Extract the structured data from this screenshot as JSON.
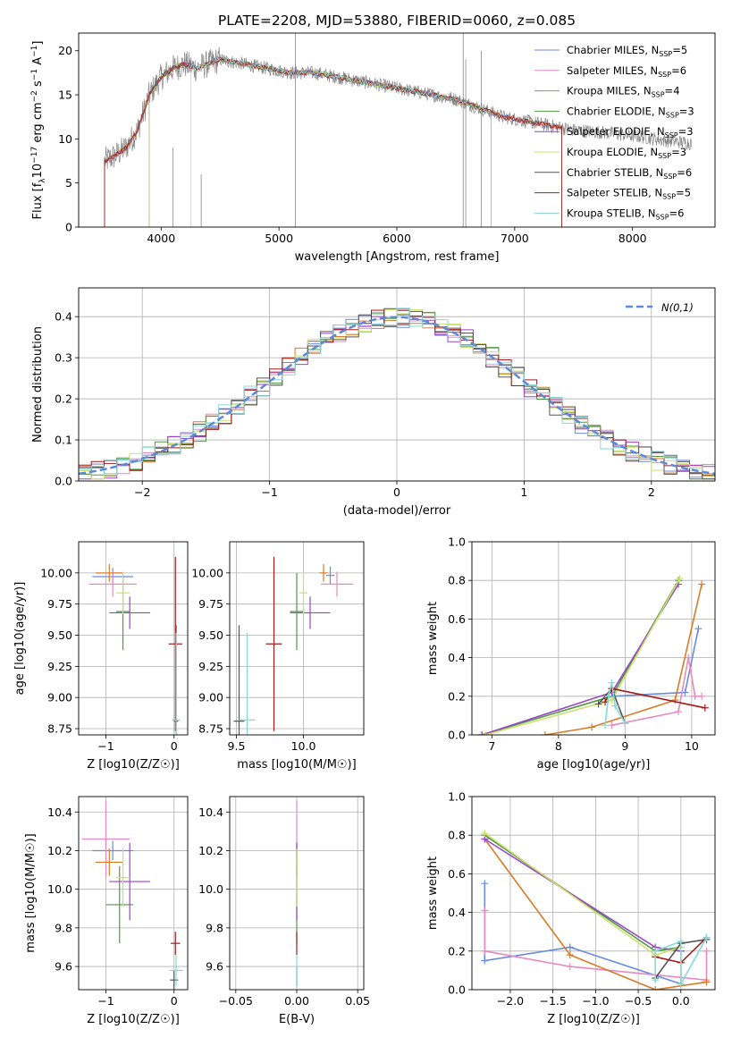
{
  "figure": {
    "title": "PLATE=2208, MJD=53880, FIBERID=0060, z=0.085"
  },
  "models": [
    {
      "name": "Chabrier MILES",
      "nssp": "5",
      "color": "#6b8be0"
    },
    {
      "name": "Salpeter MILES",
      "nssp": "6",
      "color": "#e889c0"
    },
    {
      "name": "Kroupa MILES",
      "nssp": "4",
      "color": "#d97a25"
    },
    {
      "name": "Chabrier ELODIE",
      "nssp": "3",
      "color": "#4e9a45"
    },
    {
      "name": "Salpeter ELODIE",
      "nssp": "3",
      "color": "#9b45c8"
    },
    {
      "name": "Kroupa ELODIE",
      "nssp": "3",
      "color": "#c9e26a"
    },
    {
      "name": "Chabrier STELIB",
      "nssp": "6",
      "color": "#555555"
    },
    {
      "name": "Salpeter STELIB",
      "nssp": "5",
      "color": "#a51c1c"
    },
    {
      "name": "Kroupa STELIB",
      "nssp": "6",
      "color": "#86d8d8"
    }
  ],
  "chart_data": [
    {
      "id": "spectrum",
      "type": "line",
      "title": "PLATE=2208, MJD=53880, FIBERID=0060, z=0.085",
      "xlabel": "wavelength [Angstrom, rest frame]",
      "ylabel": "Flux [f_λ 10^-17 erg cm^-2 s^-1 A^-1]",
      "xlim": [
        3300,
        8700
      ],
      "ylim": [
        0,
        22
      ],
      "xticks": [
        "4000",
        "5000",
        "6000",
        "7000",
        "8000"
      ],
      "yticks": [
        "0",
        "5",
        "10",
        "15",
        "20"
      ],
      "data_color": "#888888",
      "data_anchors": [
        [
          3520,
          7.5
        ],
        [
          3600,
          8.0
        ],
        [
          3700,
          9.0
        ],
        [
          3800,
          11.0
        ],
        [
          3900,
          15.0
        ],
        [
          4000,
          17.0
        ],
        [
          4100,
          18.0
        ],
        [
          4200,
          18.5
        ],
        [
          4300,
          18.0
        ],
        [
          4400,
          18.5
        ],
        [
          4500,
          19.0
        ],
        [
          4700,
          18.5
        ],
        [
          4900,
          18.0
        ],
        [
          5100,
          17.5
        ],
        [
          5300,
          17.5
        ],
        [
          5500,
          17.0
        ],
        [
          5700,
          16.5
        ],
        [
          5900,
          16.0
        ],
        [
          6100,
          15.5
        ],
        [
          6300,
          15.0
        ],
        [
          6500,
          14.5
        ],
        [
          6700,
          13.5
        ],
        [
          6900,
          12.5
        ],
        [
          7100,
          12.0
        ],
        [
          7300,
          11.5
        ],
        [
          7500,
          11.0
        ],
        [
          7700,
          10.8
        ],
        [
          7900,
          10.5
        ],
        [
          8100,
          10.2
        ],
        [
          8300,
          9.8
        ],
        [
          8500,
          9.5
        ]
      ],
      "model_ranges": [
        [
          3520,
          7400
        ],
        [
          3520,
          7400
        ],
        [
          3520,
          7400
        ],
        [
          3900,
          6800
        ],
        [
          3900,
          6800
        ],
        [
          3900,
          6800
        ],
        [
          3520,
          7400
        ],
        [
          3520,
          7400
        ],
        [
          4250,
          6800
        ]
      ],
      "spikes": [
        [
          4101,
          9
        ],
        [
          4340,
          6
        ],
        [
          5140,
          22
        ],
        [
          6563,
          22
        ],
        [
          6585,
          19
        ],
        [
          6716,
          20
        ]
      ],
      "legend_position": "upper right"
    },
    {
      "id": "residuals",
      "type": "line",
      "xlabel": "(data-model)/error",
      "ylabel": "Normed distribution",
      "xlim": [
        -2.5,
        2.5
      ],
      "ylim": [
        0,
        0.47
      ],
      "xticks": [
        "−2",
        "−1",
        "0",
        "1",
        "2"
      ],
      "yticks": [
        "0.0",
        "0.1",
        "0.2",
        "0.3",
        "0.4"
      ],
      "grid": true,
      "bin_width": 0.1,
      "reference": {
        "label": "N(0,1)",
        "color": "#5b8bd8",
        "mean": 0,
        "sigma": 1
      },
      "legend_position": "upper right"
    },
    {
      "id": "age-vs-Z",
      "type": "scatter",
      "xlabel": "Z [log10(Z/Z☉)]",
      "ylabel": "age [log10(age/yr)]",
      "xlim": [
        -1.4,
        0.2
      ],
      "ylim": [
        8.7,
        10.25
      ],
      "xticks": [
        "−1",
        "0"
      ],
      "yticks": [
        "8.75",
        "9.00",
        "9.25",
        "9.50",
        "9.75",
        "10.00"
      ],
      "grid": true,
      "points": [
        {
          "x": -0.9,
          "y": 9.97,
          "xerr": 0.3,
          "yerr": 0.07
        },
        {
          "x": -0.9,
          "y": 9.91,
          "xerr": 0.35,
          "yerr": 0.1
        },
        {
          "x": -0.95,
          "y": 10.0,
          "xerr": 0.2,
          "yerr": 0.07
        },
        {
          "x": -0.75,
          "y": 9.69,
          "xerr": 0.1,
          "yerr": 0.31
        },
        {
          "x": -0.65,
          "y": 9.68,
          "xerr": 0.3,
          "yerr": 0.13
        },
        {
          "x": -0.75,
          "y": 9.84,
          "xerr": 0.1,
          "yerr": 0.17
        },
        {
          "x": 0.03,
          "y": 8.81,
          "xerr": 0.03,
          "yerr": 0.77
        },
        {
          "x": 0.02,
          "y": 9.43,
          "xerr": 0.1,
          "yerr": 0.7
        },
        {
          "x": 0.03,
          "y": 8.82,
          "xerr": 0.06,
          "yerr": 0.7
        }
      ]
    },
    {
      "id": "age-vs-mass",
      "type": "scatter",
      "xlabel": "mass [log10(M/M☉)]",
      "ylabel": "",
      "xlim": [
        9.45,
        10.45
      ],
      "ylim": [
        8.7,
        10.25
      ],
      "xticks": [
        "9.5",
        "10.0"
      ],
      "yticks": [
        "8.75",
        "9.00",
        "9.25",
        "9.50",
        "9.75",
        "10.00"
      ],
      "grid": true,
      "points": [
        {
          "x": 10.2,
          "y": 9.98,
          "xerr": 0.03,
          "yerr": 0.07
        },
        {
          "x": 10.25,
          "y": 9.91,
          "xerr": 0.12,
          "yerr": 0.1
        },
        {
          "x": 10.15,
          "y": 10.0,
          "xerr": 0.03,
          "yerr": 0.07
        },
        {
          "x": 9.95,
          "y": 9.69,
          "xerr": 0.05,
          "yerr": 0.31
        },
        {
          "x": 10.05,
          "y": 9.68,
          "xerr": 0.15,
          "yerr": 0.13
        },
        {
          "x": 10.0,
          "y": 9.84,
          "xerr": 0.03,
          "yerr": 0.17
        },
        {
          "x": 9.52,
          "y": 8.81,
          "xerr": 0.04,
          "yerr": 0.77
        },
        {
          "x": 9.78,
          "y": 9.43,
          "xerr": 0.06,
          "yerr": 0.7
        },
        {
          "x": 9.58,
          "y": 8.82,
          "xerr": 0.06,
          "yerr": 0.7
        }
      ]
    },
    {
      "id": "mass-weight-vs-age",
      "type": "line",
      "xlabel": "age [log10(age/yr)]",
      "ylabel": "mass weight",
      "xlim": [
        6.7,
        10.35
      ],
      "ylim": [
        0,
        1
      ],
      "xticks": [
        "7",
        "8",
        "9",
        "10"
      ],
      "yticks": [
        "0.0",
        "0.2",
        "0.4",
        "0.6",
        "0.8",
        "1.0"
      ],
      "grid": true,
      "series": [
        {
          "x": [
            8.8,
            9.9,
            10.1
          ],
          "y": [
            0.2,
            0.22,
            0.55
          ]
        },
        {
          "x": [
            8.8,
            9.8,
            9.95,
            10.05,
            10.15
          ],
          "y": [
            0.05,
            0.12,
            0.4,
            0.2,
            0.2
          ]
        },
        {
          "x": [
            7.8,
            8.5,
            9.75,
            10.15
          ],
          "y": [
            0.0,
            0.04,
            0.18,
            0.78
          ]
        },
        {
          "x": [
            6.85,
            8.8,
            9.8
          ],
          "y": [
            0.0,
            0.2,
            0.8
          ]
        },
        {
          "x": [
            6.85,
            8.8,
            9.8
          ],
          "y": [
            0.0,
            0.22,
            0.78
          ]
        },
        {
          "x": [
            6.9,
            8.8,
            9.82
          ],
          "y": [
            0.0,
            0.18,
            0.81
          ]
        },
        {
          "x": [
            8.6,
            8.8,
            9.0
          ],
          "y": [
            0.16,
            0.24,
            0.06
          ]
        },
        {
          "x": [
            8.7,
            8.8,
            10.2
          ],
          "y": [
            0.17,
            0.24,
            0.14
          ]
        },
        {
          "x": [
            8.7,
            8.75,
            8.8,
            8.85,
            9.0
          ],
          "y": [
            0.05,
            0.2,
            0.27,
            0.15,
            0.06
          ]
        }
      ]
    },
    {
      "id": "mass-vs-Z",
      "type": "scatter",
      "xlabel": "Z [log10(Z/Z☉)]",
      "ylabel": "mass [log10(M/M☉)]",
      "xlim": [
        -1.4,
        0.2
      ],
      "ylim": [
        9.48,
        10.48
      ],
      "xticks": [
        "−1",
        "0"
      ],
      "yticks": [
        "9.6",
        "9.8",
        "10.0",
        "10.2",
        "10.4"
      ],
      "grid": true,
      "points": [
        {
          "x": -0.9,
          "y": 10.2,
          "xerr": 0.3,
          "yerr": 0.05
        },
        {
          "x": -1.0,
          "y": 10.26,
          "xerr": 0.35,
          "yerr": 0.2
        },
        {
          "x": -0.95,
          "y": 10.14,
          "xerr": 0.2,
          "yerr": 0.07
        },
        {
          "x": -0.8,
          "y": 9.92,
          "xerr": 0.2,
          "yerr": 0.2
        },
        {
          "x": -0.65,
          "y": 10.04,
          "xerr": 0.3,
          "yerr": 0.2
        },
        {
          "x": -0.75,
          "y": 10.06,
          "xerr": 0.1,
          "yerr": 0.15
        },
        {
          "x": 0.0,
          "y": 9.53,
          "xerr": 0.06,
          "yerr": 0.05
        },
        {
          "x": 0.02,
          "y": 9.72,
          "xerr": 0.07,
          "yerr": 0.06
        },
        {
          "x": 0.03,
          "y": 9.58,
          "xerr": 0.1,
          "yerr": 0.08
        }
      ]
    },
    {
      "id": "mass-vs-ebv",
      "type": "scatter",
      "xlabel": "E(B-V)",
      "ylabel": "",
      "xlim": [
        -0.055,
        0.055
      ],
      "ylim": [
        9.48,
        10.48
      ],
      "xticks": [
        "−0.05",
        "0.00",
        "0.05"
      ],
      "yticks": [
        "9.6",
        "9.8",
        "10.0",
        "10.2",
        "10.4"
      ],
      "grid": true,
      "points": [
        {
          "x": 0,
          "y": 10.2,
          "xerr": 0,
          "yerr": 0.05
        },
        {
          "x": 0,
          "y": 10.26,
          "xerr": 0,
          "yerr": 0.2
        },
        {
          "x": 0,
          "y": 10.14,
          "xerr": 0,
          "yerr": 0.07
        },
        {
          "x": 0,
          "y": 9.92,
          "xerr": 0,
          "yerr": 0.2
        },
        {
          "x": 0,
          "y": 10.04,
          "xerr": 0,
          "yerr": 0.2
        },
        {
          "x": 0,
          "y": 10.06,
          "xerr": 0,
          "yerr": 0.15
        },
        {
          "x": 0,
          "y": 9.55,
          "xerr": 0,
          "yerr": 0.05
        },
        {
          "x": 0,
          "y": 9.72,
          "xerr": 0,
          "yerr": 0.06
        },
        {
          "x": 0,
          "y": 9.58,
          "xerr": 0,
          "yerr": 0.08
        }
      ]
    },
    {
      "id": "mass-weight-vs-Z",
      "type": "line",
      "xlabel": "Z [log10(Z/Z☉)]",
      "ylabel": "mass weight",
      "xlim": [
        -2.45,
        0.4
      ],
      "ylim": [
        0,
        1
      ],
      "xticks": [
        "−2.0",
        "−1.5",
        "−1.0",
        "−0.5",
        "0.0"
      ],
      "yticks": [
        "0.0",
        "0.2",
        "0.4",
        "0.6",
        "0.8",
        "1.0"
      ],
      "grid": true,
      "series": [
        {
          "x": [
            -2.3,
            -2.3,
            -1.3,
            0.0,
            0.0
          ],
          "y": [
            0.55,
            0.15,
            0.22,
            0.03,
            0.2
          ]
        },
        {
          "x": [
            -2.3,
            -2.3,
            -1.3,
            0.3,
            0.3
          ],
          "y": [
            0.41,
            0.2,
            0.12,
            0.05,
            0.2
          ]
        },
        {
          "x": [
            -2.3,
            -1.3,
            -0.3,
            0.3
          ],
          "y": [
            0.78,
            0.18,
            0.0,
            0.04
          ]
        },
        {
          "x": [
            -2.3,
            -0.3,
            0.0
          ],
          "y": [
            0.8,
            0.2,
            0.22
          ]
        },
        {
          "x": [
            -2.3,
            -0.3,
            0.0
          ],
          "y": [
            0.78,
            0.22,
            0.2
          ]
        },
        {
          "x": [
            -2.3,
            -0.3,
            0.0
          ],
          "y": [
            0.81,
            0.18,
            0.22
          ]
        },
        {
          "x": [
            -0.3,
            0.0,
            0.3
          ],
          "y": [
            0.06,
            0.24,
            0.26
          ]
        },
        {
          "x": [
            -0.3,
            0.0,
            0.3
          ],
          "y": [
            0.17,
            0.14,
            0.27
          ]
        },
        {
          "x": [
            -0.3,
            -0.3,
            0.0,
            0.0,
            0.3
          ],
          "y": [
            0.05,
            0.2,
            0.25,
            0.03,
            0.27
          ]
        }
      ]
    }
  ]
}
